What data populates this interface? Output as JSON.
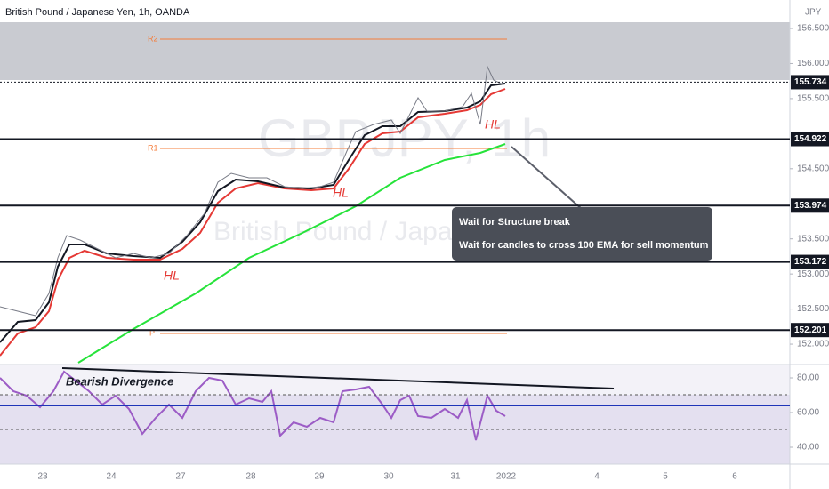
{
  "header": {
    "title": "British Pound / Japanese Yen, 1h, OANDA",
    "currency": "JPY"
  },
  "watermark": {
    "symbol": "GBPJPY, 1h",
    "name": "British Pound / Japanese Yen"
  },
  "price_axis": {
    "ticks": [
      {
        "value": 156.5,
        "label": "156.500"
      },
      {
        "value": 156,
        "label": "156.000"
      },
      {
        "value": 155.5,
        "label": "155.500"
      },
      {
        "value": 154.5,
        "label": "154.500"
      },
      {
        "value": 153.5,
        "label": "153.500"
      },
      {
        "value": 153,
        "label": "153.000"
      },
      {
        "value": 152.5,
        "label": "152.500"
      },
      {
        "value": 152,
        "label": "152.000"
      }
    ]
  },
  "levels": [
    {
      "value": 155.734,
      "label": "155.734"
    },
    {
      "value": 154.922,
      "label": "154.922"
    },
    {
      "value": 153.974,
      "label": "153.974"
    },
    {
      "value": 153.172,
      "label": "153.172"
    },
    {
      "value": 152.201,
      "label": "152.201"
    }
  ],
  "pivots": {
    "r2": "R2",
    "r1": "R1",
    "p": "P"
  },
  "annotations": {
    "note_line1": "Wait for Structure break",
    "note_line2": "Wait for candles to cross 100 EMA for sell momentum",
    "hl": [
      "HL",
      "HL",
      "HL"
    ],
    "divergence": "Bearish Divergence"
  },
  "rsi_axis": {
    "ticks": [
      {
        "value": 80,
        "label": "80.00"
      },
      {
        "value": 60,
        "label": "60.00"
      },
      {
        "value": 40,
        "label": "40.00"
      }
    ]
  },
  "time_axis": {
    "labels": [
      "23",
      "24",
      "27",
      "28",
      "29",
      "30",
      "31",
      "2022",
      "4",
      "5",
      "6"
    ]
  }
}
